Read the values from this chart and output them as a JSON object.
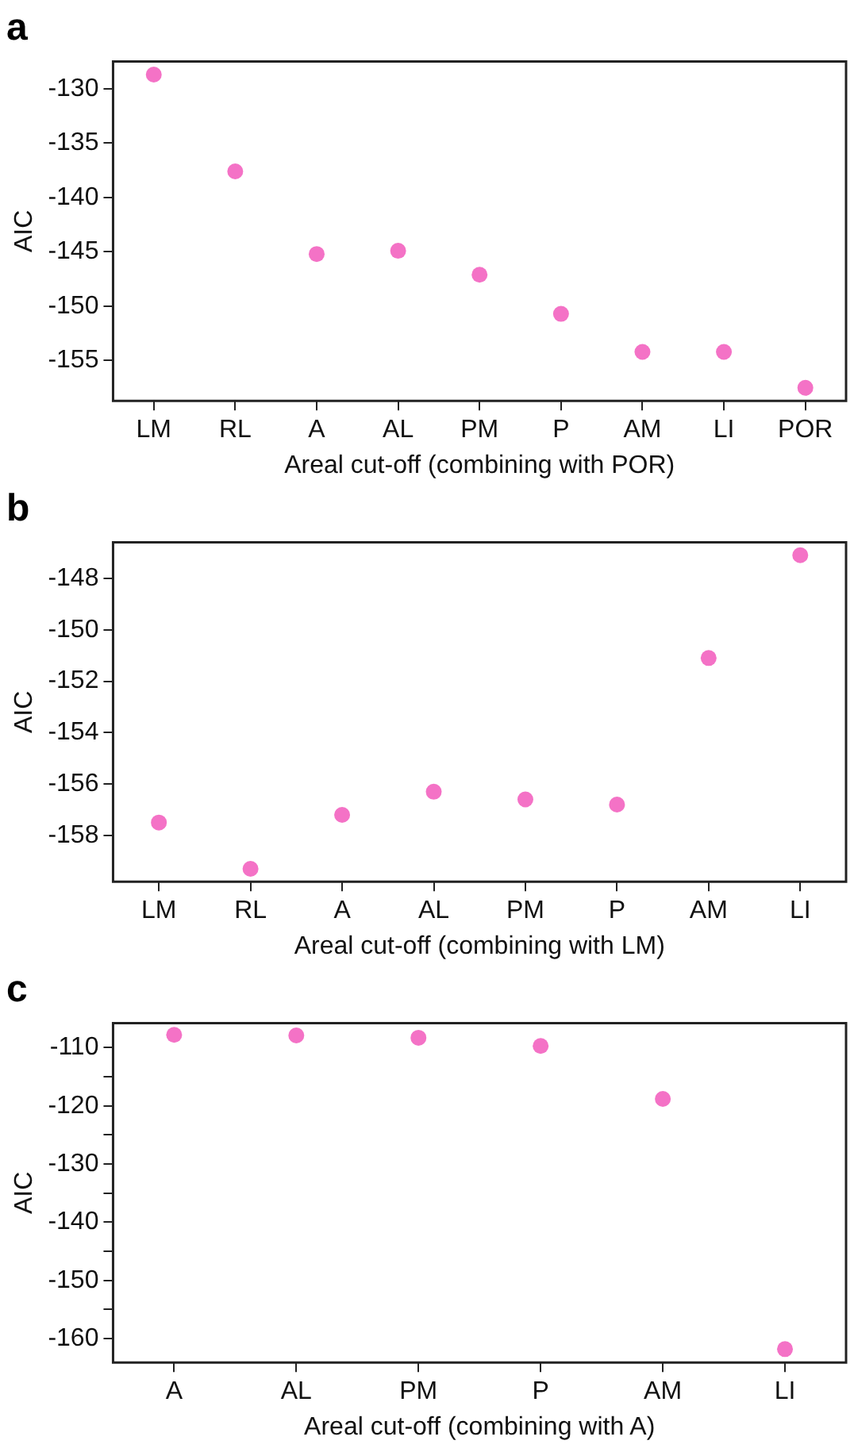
{
  "chart_data": [
    {
      "type": "scatter",
      "title": "a",
      "xlabel": "Areal cut-off (combining with POR)",
      "ylabel": "AIC",
      "categories": [
        "LM",
        "RL",
        "A",
        "AL",
        "PM",
        "P",
        "AM",
        "LI",
        "POR"
      ],
      "series": [
        {
          "color": "#f472c6",
          "values": [
            -128.7,
            -137.6,
            -145.2,
            -144.9,
            -147.1,
            -150.7,
            -154.2,
            -154.2,
            -157.5
          ]
        }
      ],
      "ylim": [
        -158.7,
        -127.5
      ],
      "yticks": [
        -155,
        -150,
        -145,
        -140,
        -135,
        -130
      ],
      "grid": false,
      "legend": false,
      "marker": "circle"
    },
    {
      "type": "scatter",
      "title": "b",
      "xlabel": "Areal cut-off (combining with LM)",
      "ylabel": "AIC",
      "categories": [
        "LM",
        "RL",
        "A",
        "AL",
        "PM",
        "P",
        "AM",
        "LI"
      ],
      "series": [
        {
          "color": "#f472c6",
          "values": [
            -157.5,
            -159.3,
            -157.2,
            -156.3,
            -156.6,
            -156.8,
            -151.1,
            -147.1
          ]
        }
      ],
      "ylim": [
        -159.8,
        -146.6
      ],
      "yticks": [
        -158,
        -156,
        -154,
        -152,
        -150,
        -148
      ],
      "grid": false,
      "legend": false,
      "marker": "circle"
    },
    {
      "type": "scatter",
      "title": "c",
      "xlabel": "Areal cut-off (combining with A)",
      "ylabel": "AIC",
      "categories": [
        "A",
        "AL",
        "PM",
        "P",
        "AM",
        "LI"
      ],
      "series": [
        {
          "color": "#f472c6",
          "values": [
            -107.8,
            -107.9,
            -108.3,
            -109.7,
            -118.8,
            -161.8
          ]
        }
      ],
      "ylim": [
        -164.1,
        -105.8
      ],
      "yticks": [
        -160,
        {
          "value": -155,
          "label": null
        },
        -150,
        {
          "value": -145,
          "label": null
        },
        -140,
        {
          "value": -135,
          "label": null
        },
        -130,
        {
          "value": -125,
          "label": null
        },
        -120,
        {
          "value": -115,
          "label": null
        },
        -110
      ],
      "grid": false,
      "legend": false,
      "marker": "circle"
    }
  ]
}
